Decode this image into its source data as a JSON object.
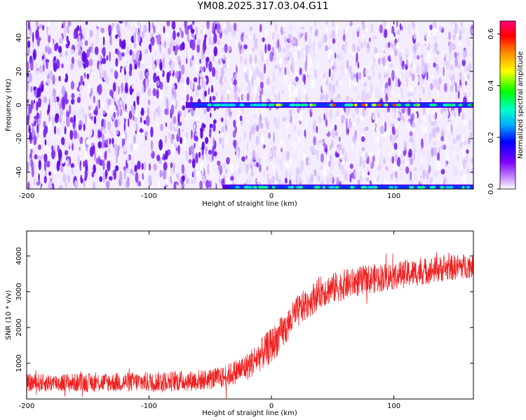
{
  "title": "YM08.2025.317.03.04.G11",
  "chart_data": [
    {
      "type": "heatmap",
      "title": "YM08.2025.317.03.04.G11",
      "xlabel": "Height of straight line (km)",
      "ylabel": "Frequency (Hz)",
      "xlim": [
        -200,
        165
      ],
      "ylim": [
        -50,
        50
      ],
      "x_ticks": [
        -200,
        -100,
        0,
        100
      ],
      "y_ticks": [
        -40,
        -20,
        0,
        20,
        40
      ],
      "colorbar": {
        "label": "Normalized spectral amplitude",
        "range": [
          0.0,
          0.65
        ],
        "ticks": [
          "0.0",
          "0.2",
          "0.4",
          "0.6"
        ],
        "colormap": [
          "#ffffff",
          "#cc99ff",
          "#8000ff",
          "#0000ff",
          "#00ffff",
          "#00ff00",
          "#ffff00",
          "#ff8000",
          "#ff0000",
          "#ff0080"
        ]
      },
      "features": [
        {
          "name": "carrier line",
          "frequency_hz": 0,
          "x_start_km": -70,
          "x_end_km": 165,
          "peak_amplitude": 0.6
        },
        {
          "name": "lower edge band",
          "frequency_hz": -49,
          "x_start_km": -40,
          "x_end_km": 165,
          "peak_amplitude": 0.3
        }
      ]
    },
    {
      "type": "line",
      "xlabel": "Height of straight line (km)",
      "ylabel": "SNR (10 * v/v)",
      "xlim": [
        -200,
        165
      ],
      "ylim": [
        0,
        4700
      ],
      "x_ticks": [
        -200,
        -100,
        0,
        100
      ],
      "y_ticks": [
        1000,
        2000,
        3000,
        4000
      ],
      "color": "#ff0000",
      "trend": {
        "x": [
          -200,
          -150,
          -100,
          -60,
          -40,
          -20,
          0,
          10,
          20,
          30,
          40,
          60,
          80,
          100,
          130,
          165
        ],
        "y": [
          450,
          460,
          480,
          520,
          600,
          900,
          1500,
          1900,
          2400,
          2700,
          3000,
          3200,
          3350,
          3450,
          3600,
          3750
        ]
      },
      "noise_amplitude": {
        "x": [
          -200,
          -40,
          0,
          30,
          165
        ],
        "y": [
          250,
          300,
          500,
          450,
          350
        ]
      }
    }
  ]
}
